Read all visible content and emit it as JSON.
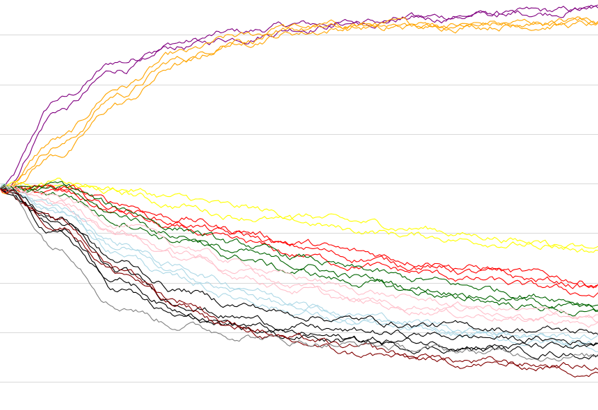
{
  "chart_data": {
    "type": "line",
    "title": "",
    "xlabel": "",
    "ylabel": "",
    "grid": true,
    "legend": "none",
    "xlim": [
      0,
      100
    ],
    "ylim": [
      0,
      8.2
    ],
    "gridlines_y": [
      0,
      1,
      2,
      3,
      4,
      5,
      6,
      7
    ],
    "noise_scale": 0.045,
    "series": [
      {
        "color": "#800080",
        "values": [
          3.9,
          5.7,
          6.45,
          6.85,
          7.05,
          7.2,
          7.25,
          7.35,
          7.4,
          7.45,
          7.5
        ]
      },
      {
        "color": "#800080",
        "values": [
          3.9,
          5.5,
          6.3,
          6.75,
          6.95,
          7.15,
          7.25,
          7.3,
          7.4,
          7.45,
          7.55
        ]
      },
      {
        "color": "#ffa500",
        "values": [
          3.9,
          4.9,
          5.95,
          6.6,
          6.95,
          7.15,
          7.2,
          7.2,
          7.25,
          7.25,
          7.3
        ]
      },
      {
        "color": "#ffa500",
        "values": [
          3.9,
          4.8,
          5.8,
          6.5,
          6.9,
          7.1,
          7.15,
          7.2,
          7.2,
          7.25,
          7.3
        ]
      },
      {
        "color": "#ffa500",
        "values": [
          3.9,
          4.6,
          5.6,
          6.4,
          6.85,
          7.05,
          7.15,
          7.15,
          7.2,
          7.2,
          7.2
        ]
      },
      {
        "color": "#ffff00",
        "values": [
          3.9,
          4.0,
          3.9,
          3.7,
          3.5,
          3.35,
          3.2,
          3.1,
          2.95,
          2.8,
          2.65
        ]
      },
      {
        "color": "#ffff00",
        "values": [
          3.9,
          4.0,
          3.8,
          3.55,
          3.35,
          3.2,
          3.05,
          2.95,
          2.85,
          2.75,
          2.65
        ]
      },
      {
        "color": "#ff0000",
        "values": [
          3.9,
          3.9,
          3.6,
          3.3,
          3.05,
          2.8,
          2.6,
          2.45,
          2.3,
          2.15,
          2.0
        ]
      },
      {
        "color": "#ff0000",
        "values": [
          3.9,
          3.85,
          3.5,
          3.2,
          2.95,
          2.7,
          2.5,
          2.35,
          2.2,
          2.05,
          1.9
        ]
      },
      {
        "color": "#ff0000",
        "values": [
          3.9,
          3.8,
          3.4,
          3.05,
          2.8,
          2.55,
          2.35,
          2.2,
          2.05,
          1.9,
          1.75
        ]
      },
      {
        "color": "#006400",
        "values": [
          3.9,
          3.95,
          3.5,
          3.1,
          2.75,
          2.5,
          2.25,
          2.05,
          1.9,
          1.75,
          1.6
        ]
      },
      {
        "color": "#006400",
        "values": [
          3.9,
          3.85,
          3.35,
          2.95,
          2.6,
          2.35,
          2.1,
          1.9,
          1.75,
          1.6,
          1.45
        ]
      },
      {
        "color": "#006400",
        "values": [
          3.9,
          3.8,
          3.25,
          2.85,
          2.5,
          2.2,
          2.0,
          1.8,
          1.65,
          1.5,
          1.35
        ]
      },
      {
        "color": "#ffc0cb",
        "values": [
          3.9,
          3.7,
          3.2,
          2.75,
          2.4,
          2.1,
          1.85,
          1.65,
          1.5,
          1.4,
          1.3
        ]
      },
      {
        "color": "#ffc0cb",
        "values": [
          3.9,
          3.6,
          3.05,
          2.6,
          2.25,
          1.95,
          1.7,
          1.55,
          1.45,
          1.35,
          1.25
        ]
      },
      {
        "color": "#ffc0cb",
        "values": [
          3.9,
          3.55,
          2.95,
          2.5,
          2.15,
          1.85,
          1.6,
          1.45,
          1.35,
          1.25,
          1.15
        ]
      },
      {
        "color": "#add8e6",
        "values": [
          3.9,
          3.5,
          2.8,
          2.3,
          1.95,
          1.6,
          1.35,
          1.2,
          1.05,
          0.95,
          0.9
        ]
      },
      {
        "color": "#add8e6",
        "values": [
          3.9,
          3.45,
          2.7,
          2.15,
          1.8,
          1.5,
          1.25,
          1.1,
          1.0,
          0.9,
          0.8
        ]
      },
      {
        "color": "#add8e6",
        "values": [
          3.9,
          3.4,
          2.6,
          2.05,
          1.7,
          1.4,
          1.15,
          1.0,
          0.9,
          0.8,
          0.7
        ]
      },
      {
        "color": "#000000",
        "values": [
          3.9,
          3.3,
          2.4,
          1.85,
          1.55,
          1.35,
          1.25,
          1.15,
          1.1,
          1.05,
          1.0
        ]
      },
      {
        "color": "#000000",
        "values": [
          3.9,
          3.2,
          2.2,
          1.6,
          1.3,
          1.1,
          1.0,
          0.95,
          0.9,
          0.85,
          0.8
        ]
      },
      {
        "color": "#000000",
        "values": [
          3.9,
          3.1,
          2.05,
          1.45,
          1.15,
          0.95,
          0.85,
          0.8,
          0.75,
          0.7,
          0.65
        ]
      },
      {
        "color": "#000000",
        "values": [
          3.9,
          2.95,
          1.85,
          1.3,
          1.05,
          0.9,
          0.8,
          0.7,
          0.65,
          0.6,
          0.55
        ]
      },
      {
        "color": "#800000",
        "values": [
          3.9,
          3.2,
          2.3,
          1.65,
          1.15,
          0.85,
          0.65,
          0.5,
          0.4,
          0.35,
          0.3
        ]
      },
      {
        "color": "#800000",
        "values": [
          3.9,
          3.15,
          2.2,
          1.5,
          1.05,
          0.75,
          0.55,
          0.45,
          0.35,
          0.3,
          0.2
        ]
      },
      {
        "color": "#808080",
        "values": [
          3.9,
          2.7,
          1.55,
          1.15,
          0.95,
          0.8,
          0.75,
          0.65,
          0.6,
          0.55,
          0.5
        ]
      }
    ]
  }
}
